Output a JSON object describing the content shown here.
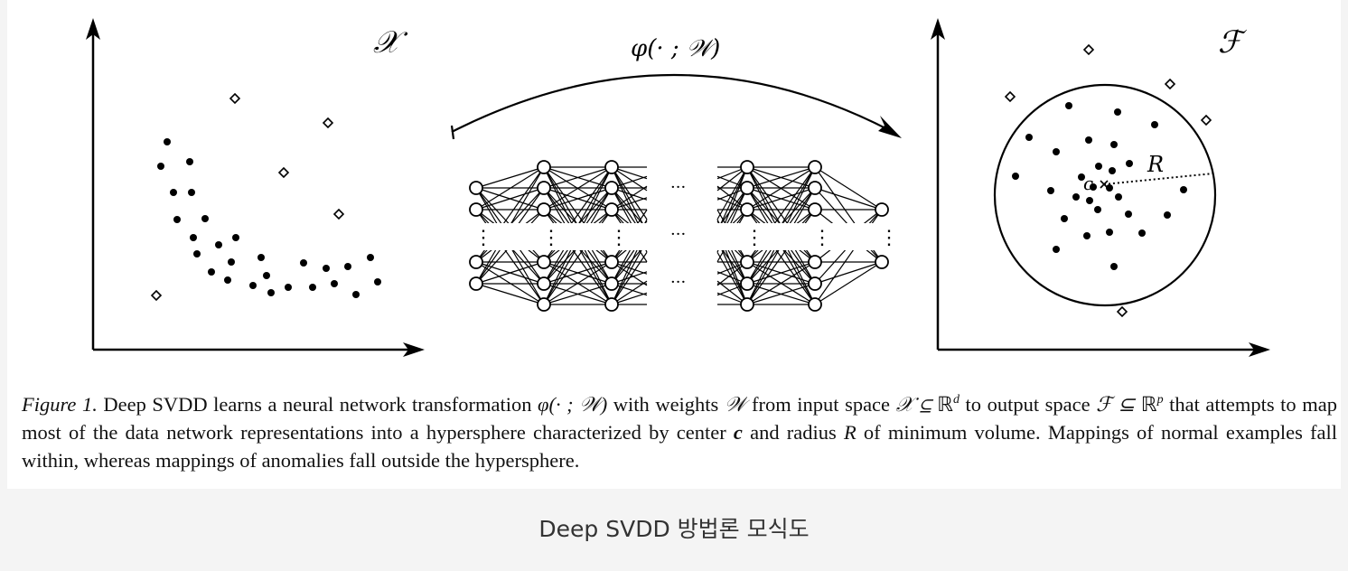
{
  "figure": {
    "input_space_label": "𝒳",
    "feature_space_label": "ℱ",
    "mapping_label": "φ(· ; 𝒲)",
    "center_label": "c",
    "radius_label": "R",
    "ellipsis": "···",
    "vertical_ellipsis": "⋮",
    "colors": {
      "ink": "#000000",
      "background": "#ffffff",
      "page": "#f4f4f4"
    }
  },
  "caption": {
    "figure_label": "Figure 1.",
    "part1": " Deep SVDD learns a neural network transformation ",
    "phi": "φ(· ; 𝒲)",
    "part2": " with weights ",
    "weights": "𝒲",
    "part3": " from input space ",
    "input_space": "𝒳 ⊆ ",
    "reals": "ℝ",
    "input_dim": "d",
    "part4": " to output space ",
    "output_space": "ℱ ⊆ ",
    "output_dim": "p",
    "part5": " that attempts to map most of the data network representations into a hypersphere characterized by center ",
    "center": "c",
    "part6": " and radius ",
    "radius": "R",
    "part7": " of minimum volume. Mappings of normal examples fall within, whereas mappings of anomalies fall outside the hypersphere."
  },
  "image_caption": "Deep SVDD 방법론 모식도"
}
